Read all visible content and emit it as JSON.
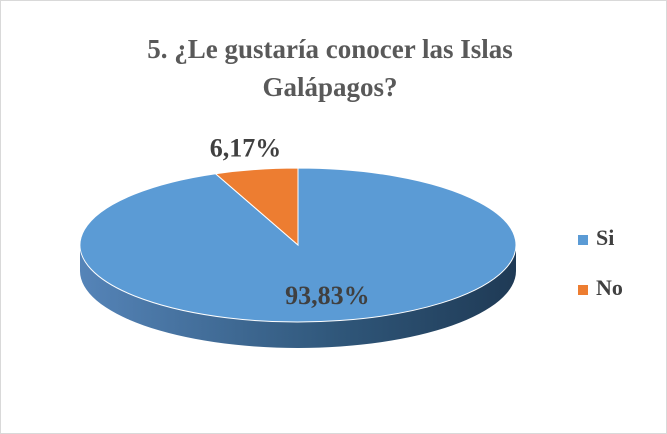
{
  "chart_data": {
    "type": "pie",
    "title": "5. ¿Le gustaría conocer las Islas Galápagos?",
    "categories": [
      "Si",
      "No"
    ],
    "values": [
      93.83,
      6.17
    ],
    "value_labels": [
      "93,83%",
      "6,17%"
    ],
    "colors": [
      "#5b9bd5",
      "#ed7d31"
    ],
    "legend": "right"
  }
}
